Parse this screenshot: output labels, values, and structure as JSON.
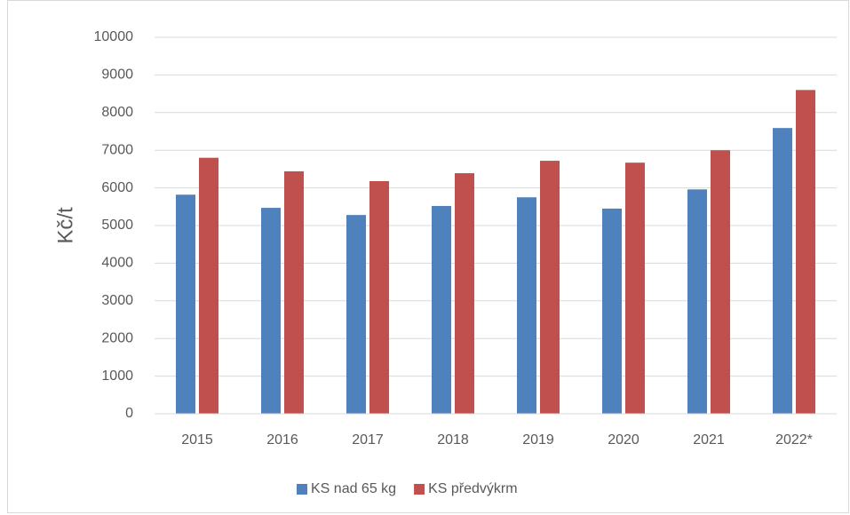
{
  "chart_data": {
    "type": "bar",
    "y_label": "Kč/t",
    "categories": [
      "2015",
      "2016",
      "2017",
      "2018",
      "2019",
      "2020",
      "2021",
      "2022*"
    ],
    "series": [
      {
        "name": "KS nad 65 kg",
        "color": "#4f81bd",
        "values": [
          5820,
          5470,
          5280,
          5520,
          5750,
          5450,
          5960,
          7590
        ]
      },
      {
        "name": "KS předvýkrm",
        "color": "#c0504d",
        "values": [
          6800,
          6440,
          6180,
          6390,
          6720,
          6670,
          7000,
          8600
        ]
      }
    ],
    "ylim": [
      0,
      10000
    ],
    "yticks": [
      0,
      1000,
      2000,
      3000,
      4000,
      5000,
      6000,
      7000,
      8000,
      9000,
      10000
    ],
    "grid": true,
    "legend": "bottom"
  }
}
